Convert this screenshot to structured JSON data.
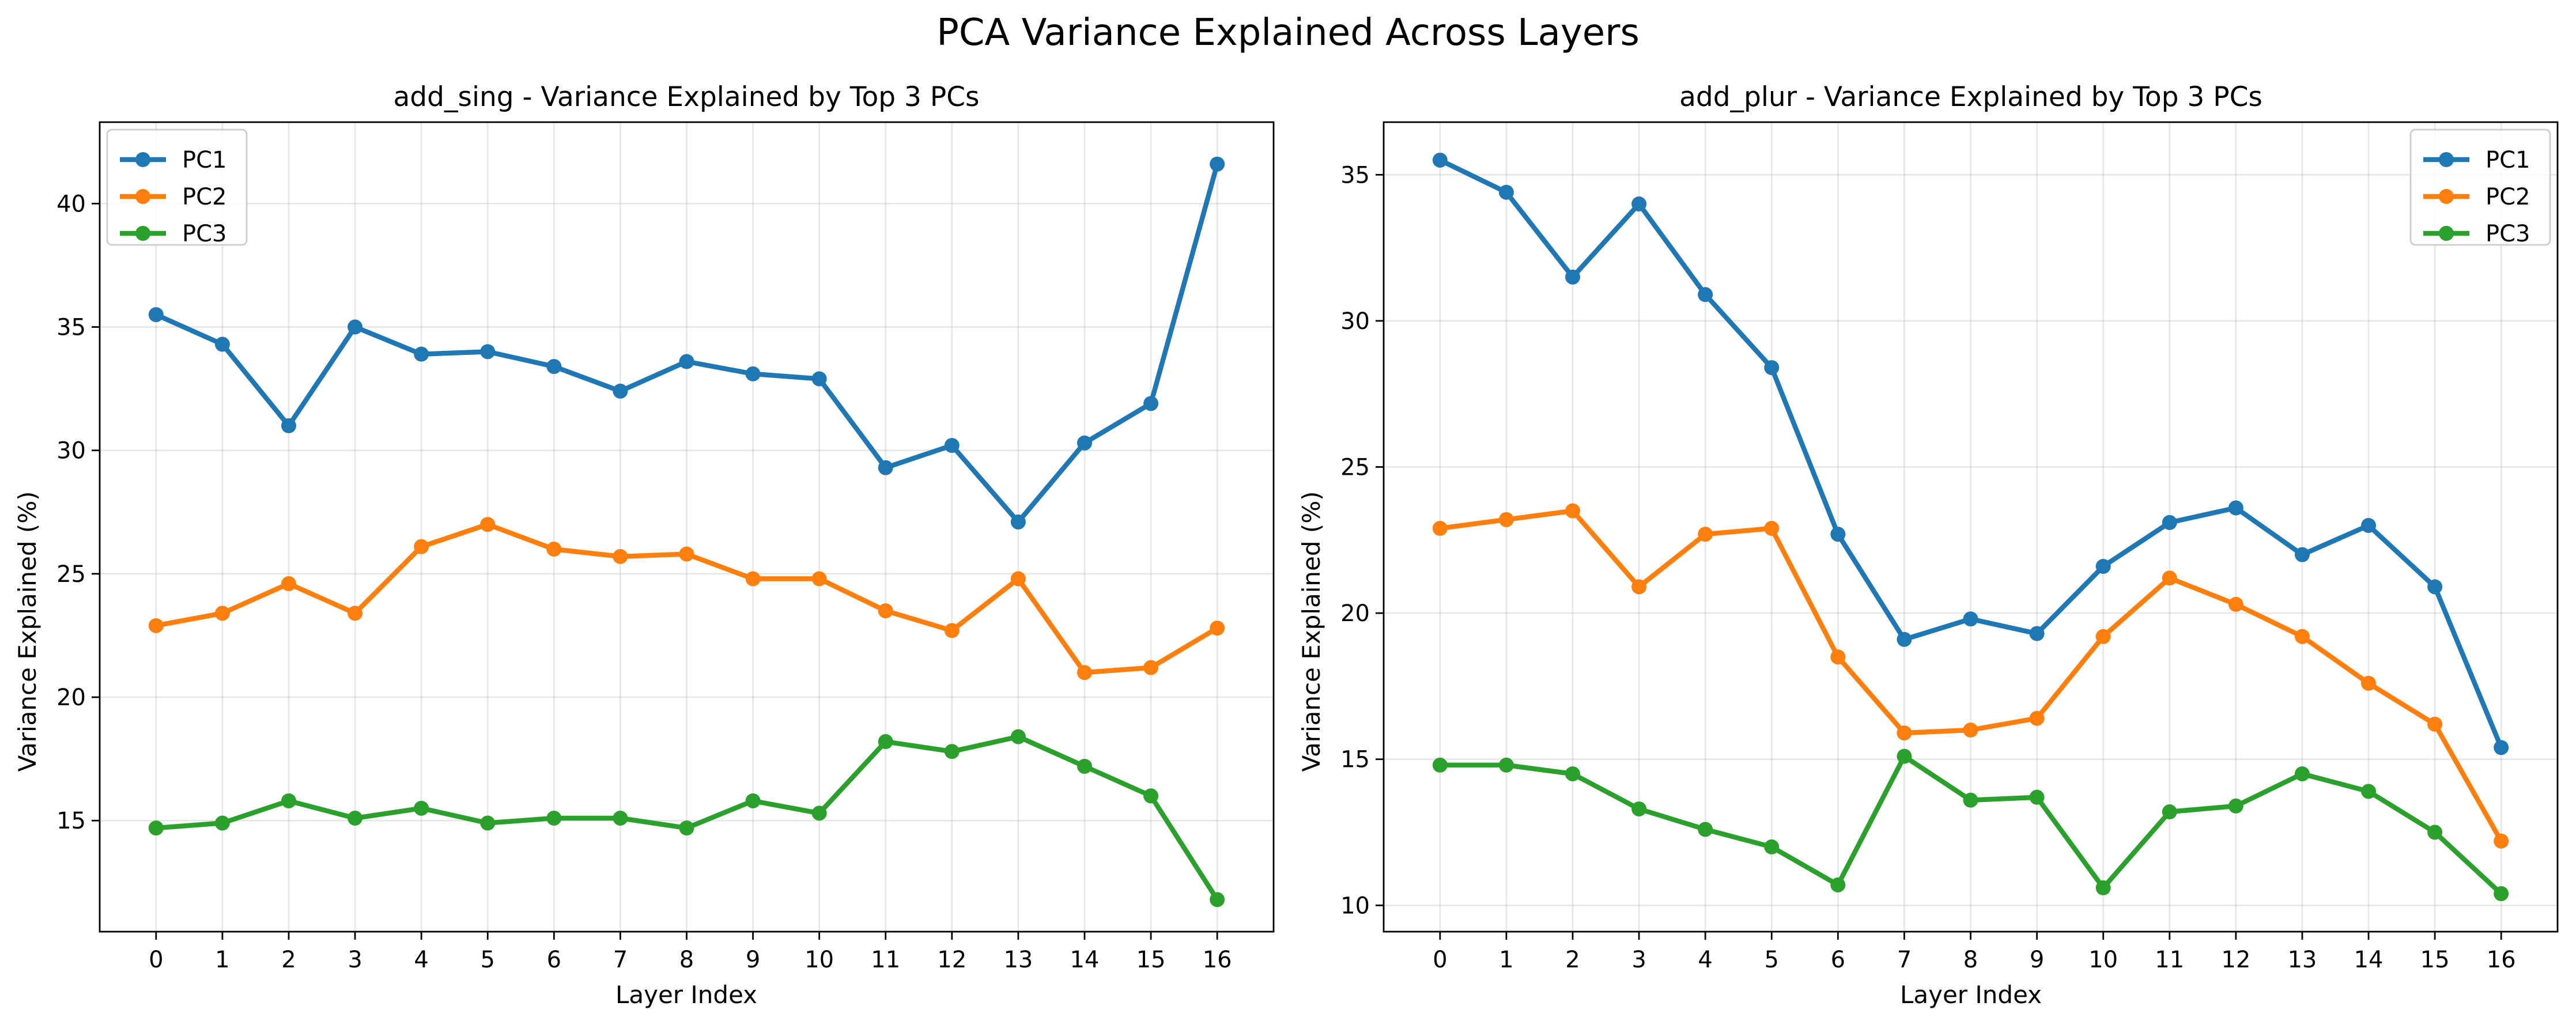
{
  "figure_title": "PCA Variance Explained Across Layers",
  "chart_data": [
    {
      "type": "line",
      "title": "add_sing - Variance Explained by Top 3 PCs",
      "xlabel": "Layer Index",
      "ylabel": "Variance Explained (%)",
      "x": [
        0,
        1,
        2,
        3,
        4,
        5,
        6,
        7,
        8,
        9,
        10,
        11,
        12,
        13,
        14,
        15,
        16
      ],
      "xlim": [
        -0.85,
        16.85
      ],
      "ylim": [
        10.5,
        43.3
      ],
      "yticks": [
        15,
        20,
        25,
        30,
        35,
        40
      ],
      "grid": true,
      "legend": "upper left",
      "series": [
        {
          "name": "PC1",
          "color": "#1f77b4",
          "values": [
            35.5,
            34.3,
            31.0,
            35.0,
            33.9,
            34.0,
            33.4,
            32.4,
            33.6,
            33.1,
            32.9,
            29.3,
            30.2,
            27.1,
            30.3,
            31.9,
            41.6
          ]
        },
        {
          "name": "PC2",
          "color": "#ff7f0e",
          "values": [
            22.9,
            23.4,
            24.6,
            23.4,
            26.1,
            27.0,
            26.0,
            25.7,
            25.8,
            24.8,
            24.8,
            23.5,
            22.7,
            24.8,
            21.0,
            21.2,
            22.8
          ]
        },
        {
          "name": "PC3",
          "color": "#2ca02c",
          "values": [
            14.7,
            14.9,
            15.8,
            15.1,
            15.5,
            14.9,
            15.1,
            15.1,
            14.7,
            15.8,
            15.3,
            18.2,
            17.8,
            18.4,
            17.2,
            16.0,
            11.8
          ]
        }
      ]
    },
    {
      "type": "line",
      "title": "add_plur - Variance Explained by Top 3 PCs",
      "xlabel": "Layer Index",
      "ylabel": "Variance Explained (%)",
      "x": [
        0,
        1,
        2,
        3,
        4,
        5,
        6,
        7,
        8,
        9,
        10,
        11,
        12,
        13,
        14,
        15,
        16
      ],
      "xlim": [
        -0.85,
        16.85
      ],
      "ylim": [
        9.1,
        36.8
      ],
      "yticks": [
        10,
        15,
        20,
        25,
        30,
        35
      ],
      "grid": true,
      "legend": "upper right",
      "series": [
        {
          "name": "PC1",
          "color": "#1f77b4",
          "values": [
            35.5,
            34.4,
            31.5,
            34.0,
            30.9,
            28.4,
            22.7,
            19.1,
            19.8,
            19.3,
            21.6,
            23.1,
            23.6,
            22.0,
            23.0,
            20.9,
            15.4
          ]
        },
        {
          "name": "PC2",
          "color": "#ff7f0e",
          "values": [
            22.9,
            23.2,
            23.5,
            20.9,
            22.7,
            22.9,
            18.5,
            15.9,
            16.0,
            16.4,
            19.2,
            21.2,
            20.3,
            19.2,
            17.6,
            16.2,
            12.2
          ]
        },
        {
          "name": "PC3",
          "color": "#2ca02c",
          "values": [
            14.8,
            14.8,
            14.5,
            13.3,
            12.6,
            12.0,
            10.7,
            15.1,
            13.6,
            13.7,
            10.6,
            13.2,
            13.4,
            14.5,
            13.9,
            12.5,
            10.4
          ]
        }
      ]
    }
  ]
}
